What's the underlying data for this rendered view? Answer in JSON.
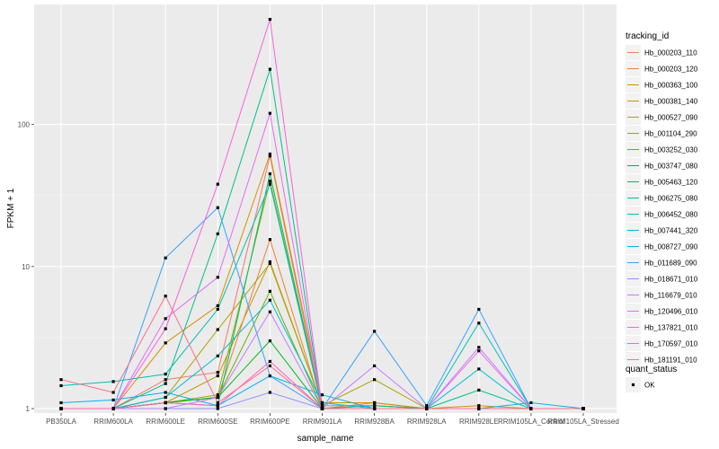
{
  "chart_data": {
    "type": "line",
    "xlabel": "sample_name",
    "ylabel": "FPKM + 1",
    "y_scale": "log10",
    "ylim": [
      0.93,
      700
    ],
    "y_ticks": [
      1,
      10,
      100
    ],
    "y_tick_labels": [
      "1",
      "10",
      "100"
    ],
    "grid": true,
    "legend_placement": "right",
    "categories": [
      "PB350LA",
      "RRIM600LA",
      "RRIM600LE",
      "RRIM600SE",
      "RRIM600PE",
      "RRIM901LA",
      "RRIM928BA",
      "RRIM928LA",
      "RRIM928LE",
      "RRIM105LA_Control",
      "RRIM105LA_Stressed"
    ],
    "legend_title": "tracking_id",
    "shape_legend_title": "quant_status",
    "shape_legend_items": [
      "OK"
    ],
    "series": [
      {
        "name": "Hb_000203_110",
        "color": "#F8766D",
        "values": [
          1.0,
          1.0,
          1.6,
          1.8,
          60,
          1.0,
          1.1,
          1.0,
          1.0,
          1.0,
          1.0
        ]
      },
      {
        "name": "Hb_000203_120",
        "color": "#EC8239",
        "values": [
          1.0,
          1.0,
          1.1,
          1.2,
          15.5,
          1.0,
          1.05,
          1.0,
          1.0,
          1.0,
          1.0
        ]
      },
      {
        "name": "Hb_000363_100",
        "color": "#DB8E00",
        "values": [
          1.0,
          1.0,
          2.9,
          5.3,
          62,
          1.1,
          1.1,
          1.0,
          1.05,
          1.0,
          1.0
        ]
      },
      {
        "name": "Hb_000381_140",
        "color": "#C79800",
        "values": [
          1.0,
          1.0,
          1.1,
          1.7,
          10.8,
          1.05,
          1.05,
          1.0,
          1.0,
          1.0,
          1.0
        ]
      },
      {
        "name": "Hb_000527_090",
        "color": "#AEA200",
        "values": [
          1.0,
          1.0,
          1.2,
          3.6,
          10.5,
          1.05,
          1.6,
          1.0,
          1.0,
          1.0,
          1.0
        ]
      },
      {
        "name": "Hb_001104_290",
        "color": "#8FAA00",
        "values": [
          1.0,
          1.0,
          1.1,
          1.25,
          40,
          1.0,
          1.0,
          1.0,
          1.0,
          1.0,
          1.0
        ]
      },
      {
        "name": "Hb_003252_030",
        "color": "#64B200",
        "values": [
          1.0,
          1.0,
          1.1,
          1.2,
          6.7,
          1.0,
          1.0,
          1.0,
          1.0,
          1.0,
          1.0
        ]
      },
      {
        "name": "Hb_003747_080",
        "color": "#00B81B",
        "values": [
          1.0,
          1.0,
          1.1,
          1.2,
          3.0,
          1.0,
          1.0,
          1.0,
          1.0,
          1.0,
          1.0
        ]
      },
      {
        "name": "Hb_005463_120",
        "color": "#00BD5C",
        "values": [
          1.0,
          1.0,
          1.1,
          1.05,
          45,
          1.0,
          1.0,
          1.0,
          1.0,
          1.0,
          1.0
        ]
      },
      {
        "name": "Hb_006275_080",
        "color": "#00C08B",
        "values": [
          1.0,
          1.0,
          1.5,
          17,
          245,
          1.0,
          1.05,
          1.0,
          1.35,
          1.0,
          1.0
        ]
      },
      {
        "name": "Hb_006452_080",
        "color": "#00C1B2",
        "values": [
          1.45,
          1.55,
          1.75,
          5.0,
          38,
          1.0,
          1.0,
          1.0,
          4.0,
          1.0,
          1.0
        ]
      },
      {
        "name": "Hb_007441_320",
        "color": "#00BCD6",
        "values": [
          1.0,
          1.0,
          1.2,
          2.35,
          5.8,
          1.1,
          1.0,
          1.0,
          1.9,
          1.0,
          1.0
        ]
      },
      {
        "name": "Hb_008727_090",
        "color": "#00B3F2",
        "values": [
          1.1,
          1.15,
          1.3,
          1.05,
          1.7,
          1.25,
          1.0,
          1.0,
          1.0,
          1.1,
          1.0
        ]
      },
      {
        "name": "Hb_011689_090",
        "color": "#35A2FF",
        "values": [
          1.0,
          1.0,
          11.5,
          26,
          1.7,
          1.0,
          3.5,
          1.05,
          5.0,
          1.0,
          1.0
        ]
      },
      {
        "name": "Hb_018671_010",
        "color": "#9590FF",
        "values": [
          1.0,
          1.0,
          1.0,
          1.0,
          1.3,
          1.0,
          1.0,
          1.0,
          1.0,
          1.0,
          1.0
        ]
      },
      {
        "name": "Hb_116679_010",
        "color": "#C77CFF",
        "values": [
          1.0,
          1.0,
          1.0,
          1.2,
          4.8,
          1.0,
          2.0,
          1.0,
          2.7,
          1.0,
          1.0
        ]
      },
      {
        "name": "Hb_120496_010",
        "color": "#E76BF3",
        "values": [
          1.0,
          1.0,
          4.3,
          8.4,
          120,
          1.0,
          1.0,
          1.0,
          2.55,
          1.0,
          1.0
        ]
      },
      {
        "name": "Hb_137821_010",
        "color": "#FA62DB",
        "values": [
          1.0,
          1.0,
          3.65,
          38,
          550,
          1.0,
          1.0,
          1.0,
          1.0,
          1.0,
          1.0
        ]
      },
      {
        "name": "Hb_170597_010",
        "color": "#FF62BC",
        "values": [
          1.0,
          1.0,
          1.1,
          1.05,
          2.15,
          1.0,
          1.0,
          1.0,
          1.0,
          1.0,
          1.0
        ]
      },
      {
        "name": "Hb_181191_010",
        "color": "#FF6C91",
        "values": [
          1.6,
          1.3,
          6.2,
          1.1,
          2.0,
          1.0,
          1.0,
          1.0,
          1.0,
          1.0,
          1.0
        ]
      }
    ]
  }
}
